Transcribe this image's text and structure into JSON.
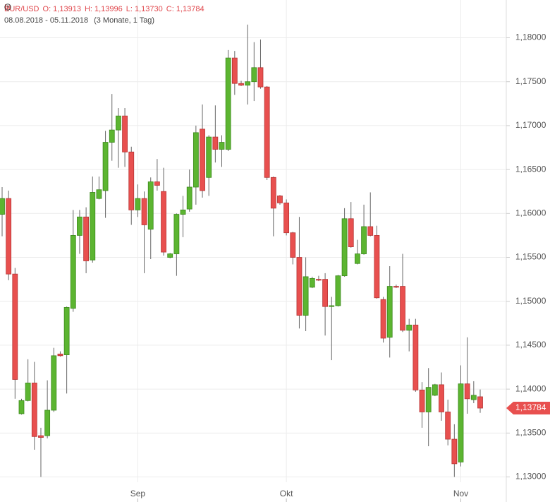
{
  "header": {
    "symbol": "EUR/USD",
    "open": "O: 1,13913",
    "high": "H: 1,13996",
    "low": "L: 1,13730",
    "close": "C: 1,13784",
    "range": "08.08.2018 - 05.11.2018",
    "period": "(3 Monate, 1 Tag)"
  },
  "chart_data": {
    "type": "candlestick",
    "categories": [
      null,
      null,
      null,
      null,
      null,
      null,
      null,
      null,
      null,
      null,
      null,
      null,
      null,
      null,
      null,
      null,
      null,
      null,
      null,
      null,
      null,
      "Sep",
      null,
      null,
      null,
      null,
      null,
      null,
      null,
      null,
      null,
      null,
      null,
      null,
      null,
      null,
      null,
      null,
      null,
      null,
      null,
      null,
      null,
      null,
      "Okt",
      null,
      null,
      null,
      null,
      null,
      null,
      null,
      null,
      null,
      null,
      null,
      null,
      null,
      null,
      null,
      null,
      null,
      null,
      null,
      null,
      null,
      null,
      null,
      null,
      null,
      null,
      "Nov",
      null,
      null,
      null
    ],
    "open": [
      1.1599,
      1.1617,
      1.1531,
      1.1372,
      1.1387,
      1.1407,
      1.1347,
      1.1347,
      1.1376,
      1.144,
      1.1439,
      1.1492,
      1.1575,
      1.1596,
      1.1547,
      1.1617,
      1.1626,
      1.1681,
      1.1695,
      1.1711,
      1.167,
      1.1604,
      1.1617,
      1.1582,
      1.1636,
      1.1625,
      1.155,
      1.1554,
      1.1599,
      1.1605,
      1.163,
      1.1696,
      1.1641,
      1.1687,
      1.1673,
      1.1673,
      1.1777,
      1.1748,
      1.1746,
      1.175,
      1.1766,
      1.1744,
      1.1641,
      1.162,
      1.1612,
      1.1578,
      1.155,
      1.1484,
      1.1516,
      1.1525,
      1.1525,
      1.1494,
      1.1495,
      1.1529,
      1.1594,
      1.1543,
      1.1554,
      1.1585,
      1.1575,
      1.1502,
      1.1459,
      1.1517,
      1.1517,
      1.1467,
      1.1473,
      1.1399,
      1.1374,
      1.1393,
      1.1405,
      1.1374,
      1.1343,
      1.1317,
      1.1406,
      1.1388,
      1.13913
    ],
    "high": [
      1.163,
      1.1626,
      1.1538,
      1.1389,
      1.1434,
      1.1431,
      1.1356,
      1.141,
      1.1447,
      1.1443,
      1.1494,
      1.1604,
      1.1604,
      1.1607,
      1.1642,
      1.1642,
      1.1694,
      1.1736,
      1.172,
      1.172,
      1.1676,
      1.1633,
      1.1625,
      1.1641,
      1.1662,
      1.1652,
      1.1555,
      1.16,
      1.162,
      1.165,
      1.17,
      1.1724,
      1.1689,
      1.1723,
      1.1689,
      1.1786,
      1.1785,
      1.1751,
      1.1815,
      1.1795,
      1.1798,
      1.1745,
      1.1642,
      1.1621,
      1.1616,
      1.1579,
      1.1596,
      1.155,
      1.1528,
      1.1529,
      1.1532,
      1.1505,
      1.153,
      1.1606,
      1.1613,
      1.157,
      1.161,
      1.1624,
      1.1586,
      1.1505,
      1.154,
      1.1519,
      1.1554,
      1.148,
      1.148,
      1.1408,
      1.1424,
      1.1406,
      1.1419,
      1.1388,
      1.136,
      1.1427,
      1.1459,
      1.1409,
      1.13996
    ],
    "low": [
      1.1574,
      1.1524,
      1.1389,
      1.1371,
      1.1386,
      1.1331,
      1.13,
      1.1344,
      1.1374,
      1.1437,
      1.1395,
      1.1488,
      1.1554,
      1.1532,
      1.1544,
      1.1616,
      1.1595,
      1.166,
      1.1652,
      1.1653,
      1.1587,
      1.1596,
      1.1532,
      1.1548,
      1.1626,
      1.1552,
      1.1549,
      1.1529,
      1.1573,
      1.1602,
      1.161,
      1.1618,
      1.162,
      1.1658,
      1.1653,
      1.1671,
      1.1735,
      1.1745,
      1.1724,
      1.1728,
      1.1742,
      1.1638,
      1.1574,
      1.161,
      1.1575,
      1.1542,
      1.1469,
      1.1466,
      1.1515,
      1.1523,
      1.1461,
      1.1433,
      1.1494,
      1.1528,
      1.1561,
      1.1542,
      1.1553,
      1.1574,
      1.1503,
      1.1453,
      1.1436,
      1.1515,
      1.1465,
      1.1443,
      1.1397,
      1.1356,
      1.1335,
      1.1392,
      1.1364,
      1.1336,
      1.13,
      1.1312,
      1.1372,
      1.1384,
      1.1373
    ],
    "close": [
      1.1617,
      1.1531,
      1.1411,
      1.1387,
      1.1407,
      1.1346,
      1.1345,
      1.1376,
      1.1438,
      1.1438,
      1.1493,
      1.1575,
      1.1596,
      1.1546,
      1.1624,
      1.1627,
      1.1681,
      1.1695,
      1.1711,
      1.167,
      1.1604,
      1.1617,
      1.1587,
      1.1636,
      1.1632,
      1.1556,
      1.1554,
      1.1599,
      1.1604,
      1.163,
      1.1692,
      1.1626,
      1.1687,
      1.1673,
      1.1681,
      1.1777,
      1.1748,
      1.1746,
      1.175,
      1.1766,
      1.1744,
      1.1641,
      1.1606,
      1.1612,
      1.1578,
      1.155,
      1.1484,
      1.1528,
      1.1526,
      1.1524,
      1.1494,
      1.1495,
      1.1529,
      1.1594,
      1.1562,
      1.1554,
      1.1585,
      1.1575,
      1.1504,
      1.1458,
      1.1517,
      1.1516,
      1.1467,
      1.1473,
      1.1399,
      1.1374,
      1.1402,
      1.1405,
      1.1374,
      1.1343,
      1.1315,
      1.1406,
      1.1389,
      1.1393,
      1.13784
    ],
    "up_color": "#5cb531",
    "down_color": "#e8504f",
    "ylim": [
      1.1294,
      1.1843
    ],
    "yticks": [
      {
        "value": 1.13,
        "label": "1,13000"
      },
      {
        "value": 1.135,
        "label": "1,13500"
      },
      {
        "value": 1.14,
        "label": "1,14000"
      },
      {
        "value": 1.145,
        "label": "1,14500"
      },
      {
        "value": 1.15,
        "label": "1,15000"
      },
      {
        "value": 1.155,
        "label": "1,15500"
      },
      {
        "value": 1.16,
        "label": "1,16000"
      },
      {
        "value": 1.165,
        "label": "1,16500"
      },
      {
        "value": 1.17,
        "label": "1,17000"
      },
      {
        "value": 1.175,
        "label": "1,17500"
      },
      {
        "value": 1.18,
        "label": "1,18000"
      }
    ],
    "last_price": {
      "value": 1.13784,
      "label": "1,13784"
    },
    "grid": true
  }
}
